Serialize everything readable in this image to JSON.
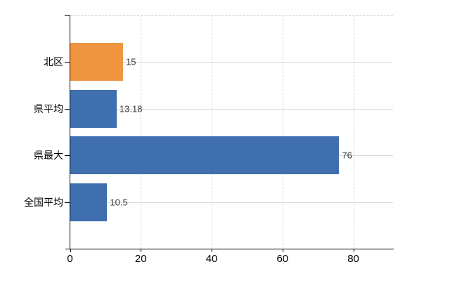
{
  "figure": {
    "background": "#ffffff",
    "title": "",
    "legend": false
  },
  "chart_data": {
    "type": "bar",
    "orientation": "horizontal",
    "title": "",
    "xlabel": "",
    "ylabel": "",
    "categories": [
      "北区",
      "県平均",
      "県最大",
      "全国平均"
    ],
    "values": [
      15,
      13.18,
      76,
      10.5
    ],
    "value_labels": [
      "15",
      "13.18",
      "76",
      "10.5"
    ],
    "bar_colors": [
      "#ef9540",
      "#3f6fae",
      "#3f6fae",
      "#3f6fae"
    ],
    "x_ticks": [
      0,
      20,
      40,
      60,
      80
    ],
    "x_tick_labels": [
      "0",
      "20",
      "40",
      "60",
      "80"
    ],
    "xlim": [
      0,
      91.2
    ],
    "grid": true,
    "gridline_color": "#d6d6d6",
    "plot_border_top_style": "dashed",
    "axis_color": "#000000",
    "category_label_color": "#000000",
    "data_label_color": "#3a3a3a",
    "legend_position": "none"
  }
}
